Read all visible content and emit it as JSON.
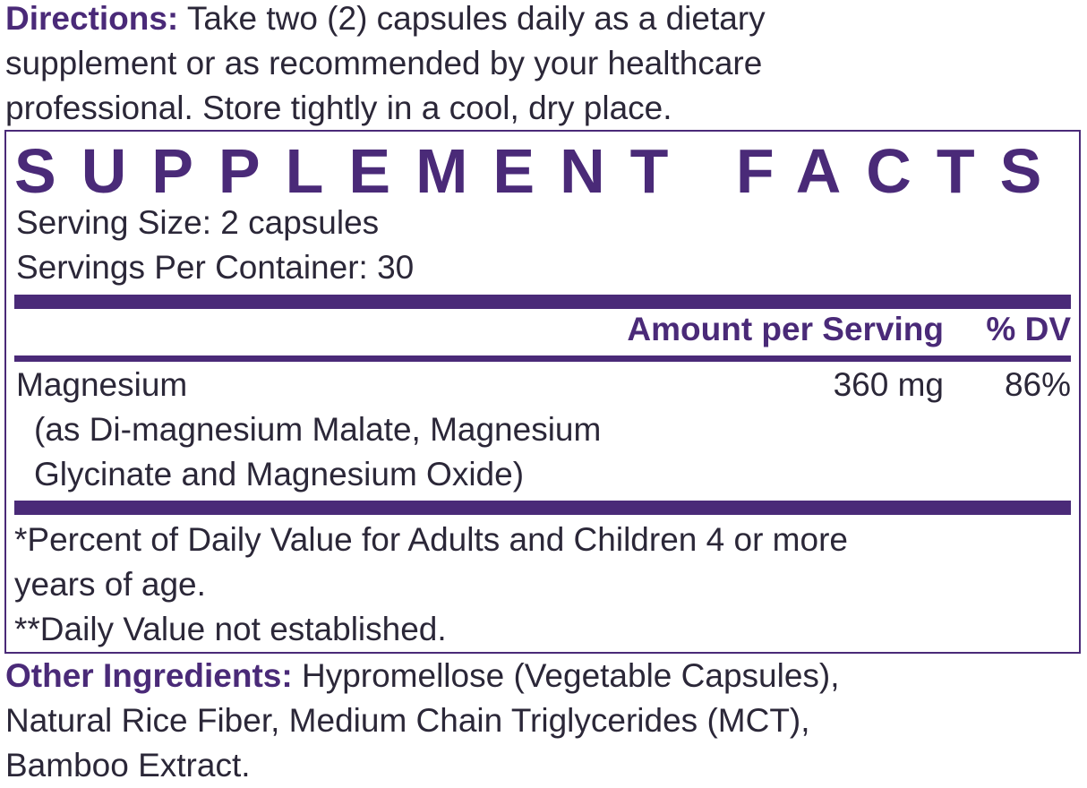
{
  "directions": {
    "label": "Directions:",
    "lines": [
      "Take two (2) capsules daily as a dietary",
      "supplement or as recommended by your healthcare",
      "professional. Store tightly in a cool, dry place."
    ]
  },
  "facts": {
    "title": "SUPPLEMENT FACTS",
    "serving_size": "Serving Size: 2 capsules",
    "servings_per_container": "Servings Per Container: 30",
    "header": {
      "amount": "Amount per Serving",
      "dv": "% DV"
    },
    "rows": [
      {
        "name": "Magnesium",
        "detail": [
          "(as Di-magnesium Malate, Magnesium",
          "Glycinate and Magnesium Oxide)"
        ],
        "amount": "360 mg",
        "dv": "86%"
      }
    ],
    "footnotes": [
      "*Percent of Daily Value for Adults and Children 4 or more",
      "years of age.",
      "**Daily Value not established."
    ]
  },
  "other": {
    "label": "Other Ingredients:",
    "lines": [
      "Hypromellose (Vegetable Capsules),",
      "Natural Rice Fiber, Medium Chain Triglycerides (MCT),",
      "Bamboo Extract."
    ]
  },
  "colors": {
    "accent": "#4a2a78",
    "text": "#2b2738"
  }
}
